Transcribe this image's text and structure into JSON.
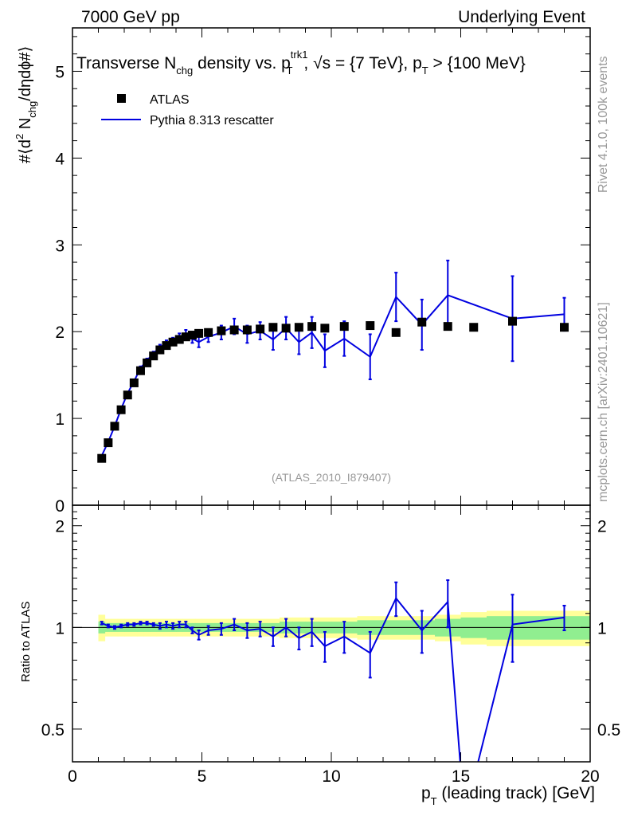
{
  "header": {
    "left": "7000 GeV pp",
    "right": "Underlying Event"
  },
  "side_labels": {
    "rivet": "Rivet 4.1.0,  100k events",
    "mcplots": "mcplots.cern.ch [arXiv:2401.10621]"
  },
  "colors": {
    "mc": "#0000e0",
    "data": "#000000",
    "band_inner": "#90ee90",
    "band_outer": "#ffff99",
    "watermark": "#999999"
  },
  "chart_data": [
    {
      "type": "scatter",
      "panel": "main",
      "title_parts": {
        "main": "Transverse N",
        "main_sub": "chg",
        "mid": " density vs. p",
        "mid_sup": "trk1",
        "mid_sub": "T",
        "tail1": ", √s = {7 TeV}, p",
        "tail1_sub": "T",
        "tail2": " > {100 MeV}"
      },
      "ylabel_parts": {
        "a": "#⟨d",
        "a_sup": "2",
        "b": " N",
        "b_sub": "chg",
        "c": "/dηdϕ#⟩"
      },
      "watermark": "(ATLAS_2010_I879407)",
      "xlim": [
        0,
        20
      ],
      "ylim": [
        0,
        5.5
      ],
      "x_ticks": [
        0,
        5,
        10,
        15,
        20
      ],
      "x_tick_labels": [
        "0",
        "5",
        "10",
        "15",
        "20"
      ],
      "y_ticks": [
        0,
        1,
        2,
        3,
        4,
        5
      ],
      "y_tick_labels": [
        "0",
        "1",
        "2",
        "3",
        "4",
        "5"
      ],
      "legend": [
        {
          "label": "ATLAS",
          "marker": "square"
        },
        {
          "label": "Pythia 8.313 rescatter",
          "marker": "line"
        }
      ],
      "series": [
        {
          "name": "ATLAS",
          "x": [
            1.13,
            1.38,
            1.63,
            1.88,
            2.13,
            2.38,
            2.63,
            2.88,
            3.13,
            3.38,
            3.63,
            3.88,
            4.13,
            4.38,
            4.63,
            4.88,
            5.25,
            5.75,
            6.25,
            6.75,
            7.25,
            7.75,
            8.25,
            8.75,
            9.25,
            9.75,
            10.5,
            11.5,
            12.5,
            13.5,
            14.5,
            15.5,
            17.0,
            19.0
          ],
          "y": [
            0.54,
            0.72,
            0.91,
            1.1,
            1.27,
            1.41,
            1.55,
            1.64,
            1.72,
            1.79,
            1.84,
            1.88,
            1.91,
            1.94,
            1.96,
            1.98,
            1.99,
            2.01,
            2.02,
            2.02,
            2.03,
            2.05,
            2.04,
            2.05,
            2.06,
            2.04,
            2.06,
            2.07,
            1.99,
            2.11,
            2.06,
            2.05,
            2.12,
            2.05
          ]
        },
        {
          "name": "Pythia 8.313 rescatter",
          "x": [
            1.13,
            1.38,
            1.63,
            1.88,
            2.13,
            2.38,
            2.63,
            2.88,
            3.13,
            3.38,
            3.63,
            3.88,
            4.13,
            4.38,
            4.63,
            4.88,
            5.25,
            5.75,
            6.25,
            6.75,
            7.25,
            7.75,
            8.25,
            8.75,
            9.25,
            9.75,
            10.5,
            11.5,
            12.5,
            13.5,
            14.5,
            17.0,
            19.0
          ],
          "y": [
            0.57,
            0.73,
            0.91,
            1.11,
            1.29,
            1.43,
            1.58,
            1.67,
            1.75,
            1.82,
            1.87,
            1.9,
            1.94,
            1.97,
            1.92,
            1.88,
            1.94,
            1.99,
            2.06,
            1.97,
            2.01,
            1.91,
            2.04,
            1.88,
            1.99,
            1.78,
            1.92,
            1.71,
            2.4,
            2.08,
            2.42,
            2.15,
            2.2
          ],
          "err": [
            0.01,
            0.01,
            0.01,
            0.01,
            0.01,
            0.02,
            0.02,
            0.02,
            0.02,
            0.03,
            0.03,
            0.03,
            0.04,
            0.05,
            0.05,
            0.06,
            0.06,
            0.08,
            0.09,
            0.1,
            0.1,
            0.12,
            0.13,
            0.14,
            0.18,
            0.19,
            0.2,
            0.26,
            0.28,
            0.29,
            0.4,
            0.49,
            0.19
          ]
        }
      ]
    },
    {
      "type": "line",
      "panel": "ratio",
      "ylabel": "Ratio to ATLAS",
      "xlabel_parts": {
        "a": "p",
        "a_sub": "T",
        "b": " (leading track) [GeV]"
      },
      "xlim": [
        0,
        20
      ],
      "ylim_log": [
        0.4,
        2.3
      ],
      "y_ticks": [
        0.5,
        1,
        2
      ],
      "y_tick_labels": [
        "0.5",
        "1",
        "2"
      ],
      "reference": 1.0,
      "bands": {
        "edges": [
          1.0,
          1.25,
          1.5,
          1.75,
          2.0,
          2.25,
          2.5,
          2.75,
          3.0,
          3.25,
          3.5,
          3.75,
          4.0,
          4.25,
          4.5,
          4.75,
          5.0,
          5.5,
          6.0,
          6.5,
          7.0,
          7.5,
          8.0,
          8.5,
          9.0,
          9.5,
          10.0,
          11.0,
          12.0,
          13.0,
          14.0,
          15.0,
          16.0,
          18.0,
          20.0
        ],
        "stat": [
          0.04,
          0.03,
          0.03,
          0.03,
          0.03,
          0.03,
          0.03,
          0.03,
          0.03,
          0.03,
          0.03,
          0.03,
          0.03,
          0.03,
          0.03,
          0.03,
          0.03,
          0.03,
          0.03,
          0.03,
          0.03,
          0.03,
          0.04,
          0.04,
          0.04,
          0.04,
          0.04,
          0.05,
          0.05,
          0.05,
          0.06,
          0.07,
          0.08,
          0.08
        ],
        "total": [
          0.09,
          0.06,
          0.06,
          0.06,
          0.06,
          0.06,
          0.06,
          0.06,
          0.06,
          0.06,
          0.06,
          0.06,
          0.06,
          0.06,
          0.06,
          0.06,
          0.06,
          0.06,
          0.06,
          0.06,
          0.06,
          0.06,
          0.07,
          0.07,
          0.07,
          0.07,
          0.07,
          0.08,
          0.08,
          0.08,
          0.09,
          0.11,
          0.12,
          0.12
        ]
      },
      "series": [
        {
          "name": "Pythia 8.313 rescatter / ATLAS",
          "x": [
            1.13,
            1.38,
            1.63,
            1.88,
            2.13,
            2.38,
            2.63,
            2.88,
            3.13,
            3.38,
            3.63,
            3.88,
            4.13,
            4.38,
            4.63,
            4.88,
            5.25,
            5.75,
            6.25,
            6.75,
            7.25,
            7.75,
            8.25,
            8.75,
            9.25,
            9.75,
            10.5,
            11.5,
            12.5,
            13.5,
            14.5,
            15.0,
            15.6,
            17.0,
            19.0
          ],
          "y": [
            1.03,
            1.01,
            1.0,
            1.01,
            1.02,
            1.02,
            1.03,
            1.03,
            1.02,
            1.01,
            1.02,
            1.01,
            1.02,
            1.02,
            0.98,
            0.95,
            0.98,
            0.99,
            1.02,
            0.98,
            0.99,
            0.94,
            1.0,
            0.93,
            0.97,
            0.88,
            0.94,
            0.84,
            1.22,
            0.98,
            1.19,
            0.38,
            0.38,
            1.02,
            1.07
          ],
          "err": [
            0.01,
            0.01,
            0.01,
            0.01,
            0.01,
            0.01,
            0.01,
            0.01,
            0.01,
            0.02,
            0.02,
            0.02,
            0.02,
            0.02,
            0.02,
            0.03,
            0.03,
            0.04,
            0.04,
            0.05,
            0.05,
            0.06,
            0.06,
            0.07,
            0.09,
            0.09,
            0.1,
            0.13,
            0.14,
            0.14,
            0.19,
            0,
            0,
            0.23,
            0.09
          ]
        }
      ]
    }
  ]
}
